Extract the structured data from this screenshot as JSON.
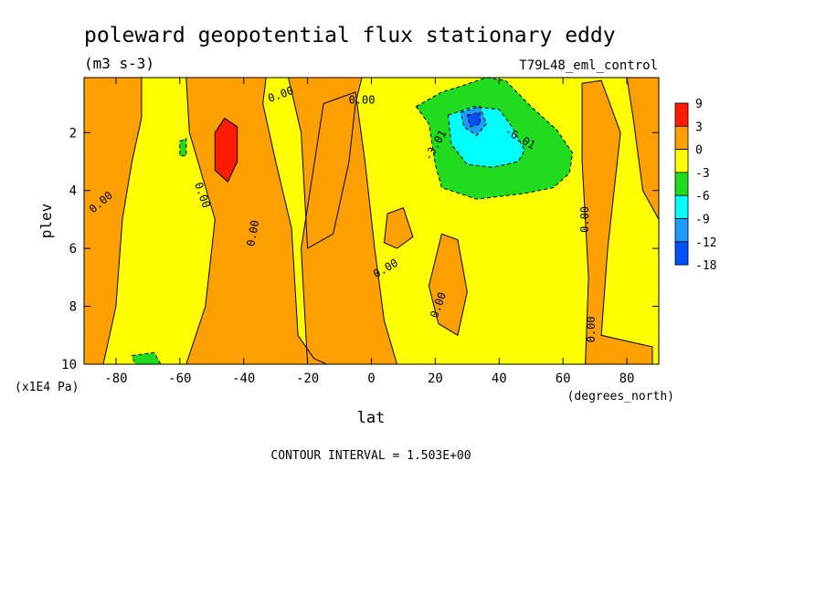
{
  "chart_data": {
    "type": "heatmap",
    "title": "poleward geopotential flux stationary eddy",
    "units": "(m3 s-3)",
    "run_label": "T79L48_eml_control",
    "xlabel": "lat",
    "xunits": "(degrees_north)",
    "ylabel": "plev",
    "yunits": "(x1E4 Pa)",
    "xlim": [
      -90,
      90
    ],
    "ylim": [
      10,
      0.1
    ],
    "x_ticks": [
      -80,
      -60,
      -40,
      -20,
      0,
      20,
      40,
      60,
      80
    ],
    "x_tick_labels": [
      "-80",
      "-60",
      "-40",
      "-20",
      "0",
      "20",
      "40",
      "60",
      "80"
    ],
    "y_ticks": [
      2,
      4,
      6,
      8,
      10
    ],
    "y_tick_labels": [
      "2",
      "4",
      "6",
      "8",
      "10"
    ],
    "levels": [
      -18,
      -12,
      -9,
      -6,
      -3,
      0,
      3,
      9
    ],
    "legend_labels": [
      "9",
      "3",
      "0",
      "-3",
      "-6",
      "-9",
      "-12",
      "-18"
    ],
    "colors": {
      "9": "#ff1a00",
      "3": "#ff9f00",
      "0": "#ffff00",
      "-3": "#1fdc1f",
      "-6": "#00ffff",
      "-9": "#1e9bff",
      "-12": "#0050ff"
    },
    "contour_labels": [
      "0.00",
      "-3.01",
      "-6.01"
    ],
    "contour_interval": "CONTOUR INTERVAL = 1.503E+00",
    "regions": [
      {
        "level": "3",
        "points": [
          [
            -90,
            0.1
          ],
          [
            -72,
            0.1
          ],
          [
            -72,
            1.5
          ],
          [
            -75,
            3
          ],
          [
            -78,
            5
          ],
          [
            -80,
            8
          ],
          [
            -84,
            10
          ],
          [
            -90,
            10
          ]
        ]
      },
      {
        "level": "3",
        "points": [
          [
            -58,
            0.1
          ],
          [
            -33,
            0.1
          ],
          [
            -34,
            1
          ],
          [
            -30,
            3
          ],
          [
            -25,
            5.3
          ],
          [
            -23,
            9
          ],
          [
            -18,
            9.8
          ],
          [
            -14,
            10
          ],
          [
            -58,
            10
          ],
          [
            -52,
            8
          ],
          [
            -49,
            5
          ],
          [
            -57,
            2
          ]
        ]
      },
      {
        "level": "3",
        "points": [
          [
            -26,
            0.1
          ],
          [
            -3,
            0.1
          ],
          [
            -5,
            1
          ],
          [
            -7,
            3
          ],
          [
            -12,
            5.5
          ],
          [
            -20,
            6
          ],
          [
            -22,
            2
          ]
        ]
      },
      {
        "level": "3",
        "points": [
          [
            -15,
            1
          ],
          [
            -5,
            0.6
          ],
          [
            -2,
            3
          ],
          [
            1,
            6
          ],
          [
            4,
            8.5
          ],
          [
            8,
            10
          ],
          [
            -20,
            10
          ],
          [
            -22,
            6
          ]
        ]
      },
      {
        "level": "3",
        "points": [
          [
            5,
            4.8
          ],
          [
            10,
            4.6
          ],
          [
            13,
            5.6
          ],
          [
            8,
            6
          ],
          [
            4,
            5.8
          ]
        ]
      },
      {
        "level": "3",
        "points": [
          [
            22,
            5.5
          ],
          [
            27,
            5.7
          ],
          [
            30,
            7.5
          ],
          [
            27,
            9
          ],
          [
            21,
            8.6
          ],
          [
            18,
            7.3
          ]
        ]
      },
      {
        "level": "3",
        "points": [
          [
            66,
            0.3
          ],
          [
            72,
            0.2
          ],
          [
            78,
            2
          ],
          [
            74,
            6
          ],
          [
            72,
            9
          ],
          [
            88,
            9.4
          ],
          [
            88,
            10
          ],
          [
            67,
            10
          ],
          [
            68,
            7
          ],
          [
            66,
            3
          ]
        ]
      },
      {
        "level": "3",
        "points": [
          [
            80,
            0.1
          ],
          [
            90,
            0.1
          ],
          [
            90,
            5
          ],
          [
            85,
            4
          ],
          [
            82,
            1.5
          ]
        ]
      },
      {
        "level": "9",
        "points": [
          [
            -49,
            2
          ],
          [
            -46,
            1.5
          ],
          [
            -42,
            1.8
          ],
          [
            -42,
            3
          ],
          [
            -45,
            3.7
          ],
          [
            -49,
            3.3
          ]
        ]
      },
      {
        "level": "-3",
        "points": [
          [
            14,
            1.1
          ],
          [
            22,
            0.6
          ],
          [
            28,
            0.4
          ],
          [
            36,
            0.1
          ],
          [
            42,
            0.2
          ],
          [
            50,
            1.1
          ],
          [
            58,
            1.9
          ],
          [
            63,
            2.7
          ],
          [
            62,
            3.4
          ],
          [
            57,
            3.9
          ],
          [
            48,
            4.1
          ],
          [
            33,
            4.3
          ],
          [
            22,
            3.9
          ],
          [
            20,
            3.1
          ],
          [
            18,
            1.7
          ]
        ]
      },
      {
        "level": "-3",
        "points": [
          [
            -60,
            2.3
          ],
          [
            -58,
            2.2
          ],
          [
            -58,
            2.8
          ],
          [
            -60,
            2.8
          ]
        ]
      },
      {
        "level": "-3",
        "points": [
          [
            -75,
            9.7
          ],
          [
            -68,
            9.6
          ],
          [
            -66,
            10
          ],
          [
            -74,
            10
          ]
        ]
      },
      {
        "level": "-6",
        "points": [
          [
            24,
            1.4
          ],
          [
            32,
            1.1
          ],
          [
            40,
            1.2
          ],
          [
            44,
            1.8
          ],
          [
            48,
            2.6
          ],
          [
            46,
            3
          ],
          [
            38,
            3.2
          ],
          [
            30,
            3.1
          ],
          [
            25,
            2.4
          ]
        ]
      },
      {
        "level": "-9",
        "points": [
          [
            28,
            1.3
          ],
          [
            34,
            1.1
          ],
          [
            36,
            1.7
          ],
          [
            33,
            2.1
          ],
          [
            29,
            1.8
          ]
        ]
      },
      {
        "level": "-12",
        "points": [
          [
            30,
            1.4
          ],
          [
            34,
            1.3
          ],
          [
            34,
            1.7
          ],
          [
            31,
            1.8
          ]
        ]
      }
    ]
  }
}
